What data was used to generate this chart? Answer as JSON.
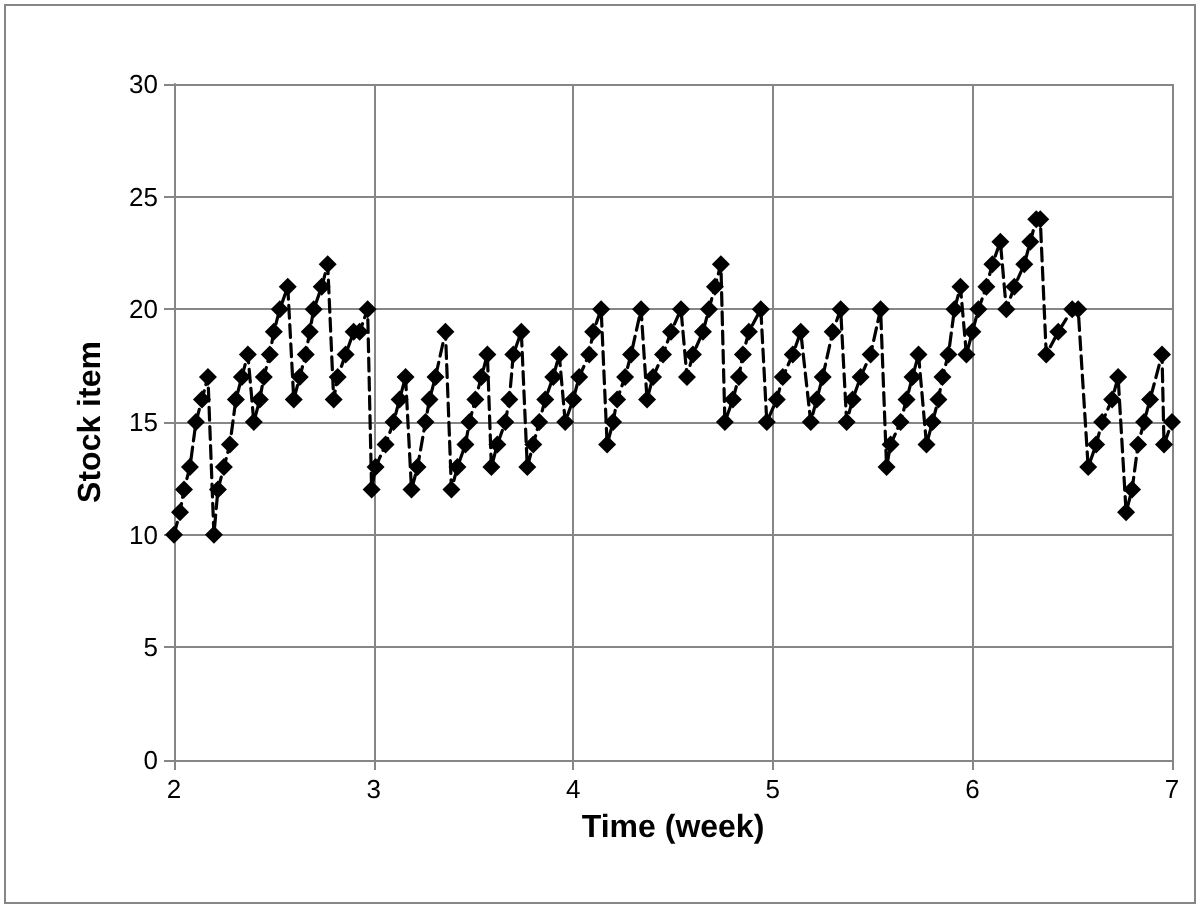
{
  "chart_data": {
    "type": "line",
    "xlabel": "Time (week)",
    "ylabel": "Stock item",
    "x": [
      2.0,
      2.03,
      2.05,
      2.08,
      2.11,
      2.14,
      2.17,
      2.2,
      2.22,
      2.25,
      2.28,
      2.31,
      2.34,
      2.37,
      2.4,
      2.43,
      2.45,
      2.48,
      2.5,
      2.53,
      2.57,
      2.6,
      2.63,
      2.66,
      2.68,
      2.7,
      2.74,
      2.77,
      2.8,
      2.82,
      2.86,
      2.9,
      2.93,
      2.97,
      2.99,
      3.01,
      3.06,
      3.1,
      3.13,
      3.16,
      3.19,
      3.22,
      3.26,
      3.28,
      3.31,
      3.36,
      3.39,
      3.42,
      3.46,
      3.48,
      3.51,
      3.54,
      3.57,
      3.59,
      3.62,
      3.66,
      3.68,
      3.7,
      3.74,
      3.77,
      3.8,
      3.83,
      3.86,
      3.9,
      3.93,
      3.96,
      4.0,
      4.03,
      4.08,
      4.1,
      4.14,
      4.17,
      4.2,
      4.22,
      4.26,
      4.29,
      4.34,
      4.37,
      4.4,
      4.45,
      4.49,
      4.54,
      4.57,
      4.6,
      4.65,
      4.68,
      4.71,
      4.74,
      4.76,
      4.8,
      4.83,
      4.85,
      4.88,
      4.94,
      4.97,
      5.02,
      5.05,
      5.1,
      5.14,
      5.19,
      5.22,
      5.25,
      5.3,
      5.34,
      5.37,
      5.4,
      5.44,
      5.49,
      5.54,
      5.57,
      5.59,
      5.64,
      5.67,
      5.7,
      5.73,
      5.77,
      5.8,
      5.83,
      5.85,
      5.88,
      5.91,
      5.94,
      5.97,
      6.0,
      6.03,
      6.07,
      6.1,
      6.14,
      6.17,
      6.21,
      6.26,
      6.29,
      6.32,
      6.34,
      6.37,
      6.43,
      6.5,
      6.53,
      6.58,
      6.62,
      6.65,
      6.7,
      6.73,
      6.77,
      6.8,
      6.83,
      6.86,
      6.89,
      6.95,
      6.96,
      7.0
    ],
    "series": [
      {
        "color": "#000000",
        "values": [
          10,
          11,
          12,
          13,
          15,
          16,
          17,
          10,
          12,
          13,
          14,
          16,
          17,
          18,
          15,
          16,
          17,
          18,
          19,
          20,
          21,
          16,
          17,
          18,
          19,
          20,
          21,
          22,
          16,
          17,
          18,
          19,
          19,
          20,
          12,
          13,
          14,
          15,
          16,
          17,
          12,
          13,
          15,
          16,
          17,
          19,
          12,
          13,
          14,
          15,
          16,
          17,
          18,
          13,
          14,
          15,
          16,
          18,
          19,
          13,
          14,
          15,
          16,
          17,
          18,
          15,
          16,
          17,
          18,
          19,
          20,
          14,
          15,
          16,
          17,
          18,
          20,
          16,
          17,
          18,
          19,
          20,
          17,
          18,
          19,
          20,
          21,
          22,
          15,
          16,
          17,
          18,
          19,
          20,
          15,
          16,
          17,
          18,
          19,
          15,
          16,
          17,
          19,
          20,
          15,
          16,
          17,
          18,
          20,
          13,
          14,
          15,
          16,
          17,
          18,
          14,
          15,
          16,
          17,
          18,
          20,
          21,
          18,
          19,
          20,
          21,
          22,
          23,
          20,
          21,
          22,
          23,
          24,
          24,
          18,
          19,
          20,
          20,
          13,
          14,
          15,
          16,
          17,
          11,
          12,
          14,
          15,
          16,
          18,
          14,
          15
        ]
      }
    ],
    "xlim": [
      2,
      7
    ],
    "xticks": [
      2,
      3,
      4,
      5,
      6,
      7
    ],
    "ylim": [
      0,
      30
    ],
    "yticks": [
      0,
      5,
      10,
      15,
      20,
      25,
      30
    ],
    "grid": true,
    "marker": "diamond",
    "line_style": "dashed"
  }
}
